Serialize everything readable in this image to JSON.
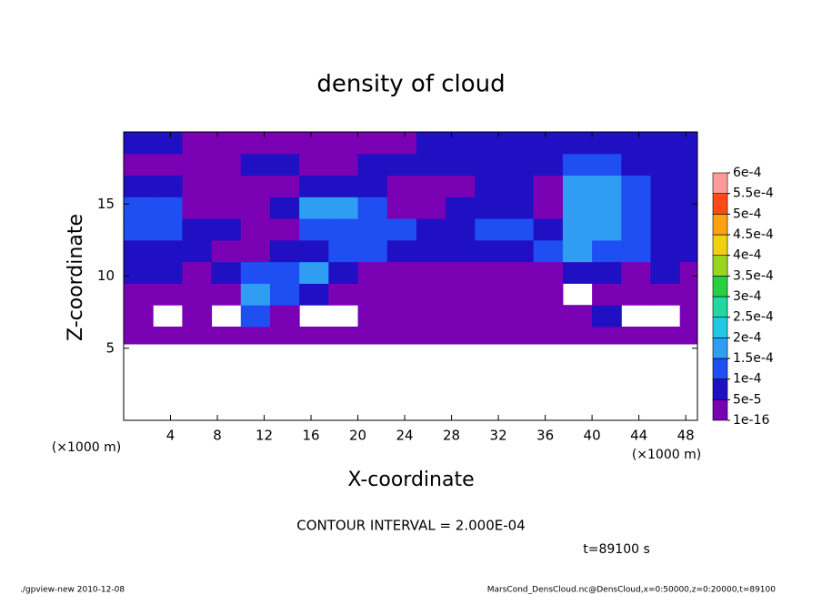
{
  "chart_data": {
    "type": "heatmap",
    "title": "density of cloud",
    "x_label": "X-coordinate",
    "y_label": "Z-coordinate",
    "x_unit_left": "(×1000 m)",
    "x_unit_right": "(×1000 m)",
    "contour_interval": "CONTOUR INTERVAL = 2.000E-04",
    "time_label": "t=89100 s",
    "footer_left": "./gpview-new  2010-12-08",
    "footer_right": "MarsCond_DensCloud.nc@DensCloud,x=0:50000,z=0:20000,t=89100",
    "xlim": [
      0,
      49
    ],
    "ylim": [
      0,
      20
    ],
    "xticks": [
      4,
      8,
      12,
      16,
      20,
      24,
      28,
      32,
      36,
      40,
      44,
      48
    ],
    "yticks": [
      5,
      10,
      15
    ],
    "x_bins": [
      0,
      2.5,
      5,
      7.5,
      10,
      12.5,
      15,
      17.5,
      20,
      22.5,
      25,
      27.5,
      30,
      32.5,
      35,
      37.5,
      40,
      42.5,
      45,
      47.5,
      50
    ],
    "z_bins": [
      0,
      5.3,
      6.5,
      8,
      9.5,
      11,
      12.5,
      14,
      15.5,
      17,
      18.5,
      20
    ],
    "values": [
      [
        null,
        null,
        null,
        null,
        null,
        null,
        null,
        null,
        null,
        null,
        null,
        null,
        null,
        null,
        null,
        null,
        null,
        null,
        null,
        null
      ],
      [
        2e-05,
        2e-05,
        2e-05,
        2e-05,
        2e-05,
        2e-05,
        2e-05,
        2e-05,
        2e-05,
        2e-05,
        2e-05,
        2e-05,
        2e-05,
        2e-05,
        2e-05,
        2e-05,
        2e-05,
        2e-05,
        2e-05,
        2e-05
      ],
      [
        2e-05,
        null,
        2e-05,
        null,
        0.00012,
        2e-05,
        null,
        null,
        2e-05,
        2e-05,
        2e-05,
        2e-05,
        2e-05,
        2e-05,
        2e-05,
        2e-05,
        7e-05,
        null,
        null,
        2e-05
      ],
      [
        2e-05,
        2e-05,
        2e-05,
        2e-05,
        0.00017,
        0.00012,
        7e-05,
        2e-05,
        2e-05,
        2e-05,
        2e-05,
        2e-05,
        2e-05,
        2e-05,
        2e-05,
        null,
        2e-05,
        2e-05,
        2e-05,
        2e-05
      ],
      [
        7e-05,
        7e-05,
        2e-05,
        7e-05,
        0.00012,
        0.00012,
        0.00017,
        7e-05,
        2e-05,
        2e-05,
        2e-05,
        2e-05,
        2e-05,
        2e-05,
        2e-05,
        7e-05,
        7e-05,
        2e-05,
        7e-05,
        2e-05
      ],
      [
        7e-05,
        7e-05,
        7e-05,
        2e-05,
        2e-05,
        7e-05,
        7e-05,
        0.00012,
        0.00012,
        7e-05,
        7e-05,
        7e-05,
        7e-05,
        7e-05,
        0.00012,
        0.00017,
        0.00012,
        0.00012,
        7e-05,
        7e-05
      ],
      [
        0.00012,
        0.00012,
        7e-05,
        7e-05,
        2e-05,
        2e-05,
        0.00012,
        0.00012,
        0.00012,
        0.00012,
        7e-05,
        7e-05,
        0.00012,
        0.00012,
        7e-05,
        0.00017,
        0.00017,
        0.00012,
        7e-05,
        7e-05
      ],
      [
        0.00012,
        0.00012,
        2e-05,
        2e-05,
        2e-05,
        7e-05,
        0.00017,
        0.00017,
        0.00012,
        2e-05,
        2e-05,
        7e-05,
        7e-05,
        7e-05,
        2e-05,
        0.00017,
        0.00017,
        0.00012,
        7e-05,
        7e-05
      ],
      [
        7e-05,
        7e-05,
        2e-05,
        2e-05,
        2e-05,
        2e-05,
        7e-05,
        7e-05,
        7e-05,
        2e-05,
        2e-05,
        2e-05,
        7e-05,
        7e-05,
        2e-05,
        0.00017,
        0.00017,
        0.00012,
        7e-05,
        7e-05
      ],
      [
        2e-05,
        2e-05,
        2e-05,
        2e-05,
        7e-05,
        7e-05,
        2e-05,
        2e-05,
        7e-05,
        7e-05,
        7e-05,
        7e-05,
        7e-05,
        7e-05,
        7e-05,
        0.00012,
        0.00012,
        7e-05,
        7e-05,
        7e-05
      ],
      [
        7e-05,
        7e-05,
        2e-05,
        2e-05,
        2e-05,
        2e-05,
        2e-05,
        2e-05,
        2e-05,
        2e-05,
        7e-05,
        7e-05,
        7e-05,
        7e-05,
        7e-05,
        7e-05,
        7e-05,
        7e-05,
        7e-05,
        7e-05
      ]
    ],
    "colorbar": {
      "ticks": [
        {
          "value": 1e-16,
          "label": "1e-16"
        },
        {
          "value": 5e-05,
          "label": "5e-5"
        },
        {
          "value": 0.0001,
          "label": "1e-4"
        },
        {
          "value": 0.00015,
          "label": "1.5e-4"
        },
        {
          "value": 0.0002,
          "label": "2e-4"
        },
        {
          "value": 0.00025,
          "label": "2.5e-4"
        },
        {
          "value": 0.0003,
          "label": "3e-4"
        },
        {
          "value": 0.00035,
          "label": "3.5e-4"
        },
        {
          "value": 0.0004,
          "label": "4e-4"
        },
        {
          "value": 0.00045,
          "label": "4.5e-4"
        },
        {
          "value": 0.0005,
          "label": "5e-4"
        },
        {
          "value": 0.00055,
          "label": "5.5e-4"
        },
        {
          "value": 0.0006,
          "label": "6e-4"
        }
      ],
      "colors": [
        "#7a00b4",
        "#2010c4",
        "#1f4ef2",
        "#2f9ef2",
        "#20c8e6",
        "#20d8a0",
        "#28d040",
        "#9ad620",
        "#f0d010",
        "#ffa010",
        "#ff4a18",
        "#ff9a9a"
      ]
    }
  }
}
